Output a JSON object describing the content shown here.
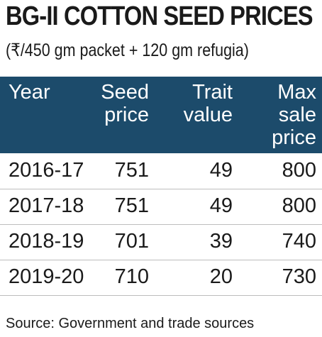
{
  "header": {
    "title": "BG-II COTTON SEED PRICES",
    "subtitle": "(₹/450 gm packet + 120 gm refugia)"
  },
  "table": {
    "columns": [
      "Year",
      "Seed price",
      "Trait value",
      "Max sale price"
    ],
    "rows": [
      [
        "2016-17",
        751,
        49,
        800
      ],
      [
        "2017-18",
        751,
        49,
        800
      ],
      [
        "2018-19",
        701,
        39,
        740
      ],
      [
        "2019-20",
        710,
        20,
        730
      ]
    ]
  },
  "footer": {
    "source": "Source: Government and trade sources"
  }
}
